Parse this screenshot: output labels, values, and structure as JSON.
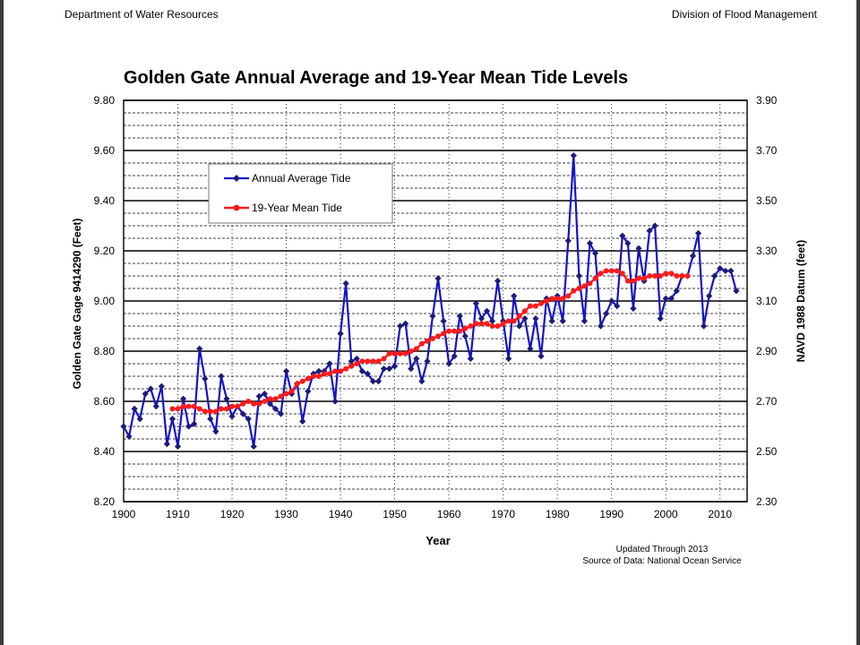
{
  "header": {
    "left": "Department of Water Resources",
    "right": "Division of Flood Management"
  },
  "footnotes": {
    "updated": "Updated Through 2013",
    "source": "Source of Data: National Ocean Service"
  },
  "chart_data": {
    "type": "line",
    "title": "Golden Gate Annual Average and 19-Year Mean Tide Levels",
    "xlabel": "Year",
    "ylabel": "Golden Gate Gage 9414290 (Feet)",
    "ylabel_right": "NAVD 1988 Datum (feet)",
    "xlim": [
      1900,
      2015
    ],
    "ylim": [
      8.2,
      9.8
    ],
    "ylim_right": [
      2.3,
      3.9
    ],
    "x_ticks": [
      1900,
      1910,
      1920,
      1930,
      1940,
      1950,
      1960,
      1970,
      1980,
      1990,
      2000,
      2010
    ],
    "y_ticks": [
      "8.20",
      "8.40",
      "8.60",
      "8.80",
      "9.00",
      "9.20",
      "9.40",
      "9.60",
      "9.80"
    ],
    "y_ticks_right": [
      "2.30",
      "2.50",
      "2.70",
      "2.90",
      "3.10",
      "3.30",
      "3.50",
      "3.70",
      "3.90"
    ],
    "grid": true,
    "legend_position": "upper-left",
    "series": [
      {
        "name": "Annual Average Tide",
        "color": "#1414c8",
        "marker_color": "#1c1c78",
        "marker": "diamond",
        "x": [
          1900,
          1901,
          1902,
          1903,
          1904,
          1905,
          1906,
          1907,
          1908,
          1909,
          1910,
          1911,
          1912,
          1913,
          1914,
          1915,
          1916,
          1917,
          1918,
          1919,
          1920,
          1921,
          1922,
          1923,
          1924,
          1925,
          1926,
          1927,
          1928,
          1929,
          1930,
          1931,
          1932,
          1933,
          1934,
          1935,
          1936,
          1937,
          1938,
          1939,
          1940,
          1941,
          1942,
          1943,
          1944,
          1945,
          1946,
          1947,
          1948,
          1949,
          1950,
          1951,
          1952,
          1953,
          1954,
          1955,
          1956,
          1957,
          1958,
          1959,
          1960,
          1961,
          1962,
          1963,
          1964,
          1965,
          1966,
          1967,
          1968,
          1969,
          1970,
          1971,
          1972,
          1973,
          1974,
          1975,
          1976,
          1977,
          1978,
          1979,
          1980,
          1981,
          1982,
          1983,
          1984,
          1985,
          1986,
          1987,
          1988,
          1989,
          1990,
          1991,
          1992,
          1993,
          1994,
          1995,
          1996,
          1997,
          1998,
          1999,
          2000,
          2001,
          2002,
          2003,
          2004,
          2005,
          2006,
          2007,
          2008,
          2009,
          2010,
          2011,
          2012,
          2013
        ],
        "values": [
          8.5,
          8.46,
          8.57,
          8.53,
          8.63,
          8.65,
          8.58,
          8.66,
          8.43,
          8.53,
          8.42,
          8.61,
          8.5,
          8.51,
          8.81,
          8.69,
          8.53,
          8.48,
          8.7,
          8.61,
          8.54,
          8.58,
          8.55,
          8.53,
          8.42,
          8.62,
          8.63,
          8.59,
          8.57,
          8.55,
          8.72,
          8.63,
          8.67,
          8.52,
          8.64,
          8.71,
          8.72,
          8.72,
          8.75,
          8.6,
          8.87,
          9.07,
          8.76,
          8.77,
          8.72,
          8.71,
          8.68,
          8.68,
          8.73,
          8.73,
          8.74,
          8.9,
          8.91,
          8.73,
          8.77,
          8.68,
          8.76,
          8.94,
          9.09,
          8.92,
          8.75,
          8.78,
          8.94,
          8.86,
          8.77,
          8.99,
          8.93,
          8.96,
          8.92,
          9.08,
          8.92,
          8.77,
          9.02,
          8.9,
          8.93,
          8.81,
          8.93,
          8.78,
          9.01,
          8.92,
          9.02,
          8.92,
          9.24,
          9.58,
          9.1,
          8.92,
          9.23,
          9.19,
          8.9,
          8.95,
          9.0,
          8.98,
          9.26,
          9.23,
          8.97,
          9.21,
          9.08,
          9.28,
          9.3,
          8.93,
          9.01,
          9.01,
          9.04,
          9.1,
          9.1,
          9.18,
          9.27,
          8.9,
          9.02,
          9.1,
          9.13,
          9.12,
          9.12,
          9.04
        ]
      },
      {
        "name": "19-Year Mean Tide",
        "color": "#ff1a1a",
        "marker": "circle",
        "x": [
          1909,
          1910,
          1911,
          1912,
          1913,
          1914,
          1915,
          1916,
          1917,
          1918,
          1919,
          1920,
          1921,
          1922,
          1923,
          1924,
          1925,
          1926,
          1927,
          1928,
          1929,
          1930,
          1931,
          1932,
          1933,
          1934,
          1935,
          1936,
          1937,
          1938,
          1939,
          1940,
          1941,
          1942,
          1943,
          1944,
          1945,
          1946,
          1947,
          1948,
          1949,
          1950,
          1951,
          1952,
          1953,
          1954,
          1955,
          1956,
          1957,
          1958,
          1959,
          1960,
          1961,
          1962,
          1963,
          1964,
          1965,
          1966,
          1967,
          1968,
          1969,
          1970,
          1971,
          1972,
          1973,
          1974,
          1975,
          1976,
          1977,
          1978,
          1979,
          1980,
          1981,
          1982,
          1983,
          1984,
          1985,
          1986,
          1987,
          1988,
          1989,
          1990,
          1991,
          1992,
          1993,
          1994,
          1995,
          1996,
          1997,
          1998,
          1999,
          2000,
          2001,
          2002,
          2003,
          2004
        ],
        "values": [
          8.57,
          8.57,
          8.58,
          8.58,
          8.58,
          8.57,
          8.56,
          8.56,
          8.56,
          8.57,
          8.57,
          8.58,
          8.58,
          8.59,
          8.6,
          8.59,
          8.59,
          8.6,
          8.61,
          8.61,
          8.62,
          8.63,
          8.64,
          8.67,
          8.68,
          8.69,
          8.7,
          8.7,
          8.71,
          8.71,
          8.72,
          8.72,
          8.73,
          8.74,
          8.75,
          8.76,
          8.76,
          8.76,
          8.76,
          8.77,
          8.79,
          8.79,
          8.79,
          8.79,
          8.8,
          8.81,
          8.83,
          8.84,
          8.85,
          8.86,
          8.87,
          8.88,
          8.88,
          8.88,
          8.89,
          8.9,
          8.91,
          8.91,
          8.91,
          8.9,
          8.9,
          8.91,
          8.92,
          8.92,
          8.94,
          8.96,
          8.98,
          8.98,
          8.99,
          9.0,
          9.01,
          9.01,
          9.01,
          9.02,
          9.04,
          9.05,
          9.06,
          9.07,
          9.09,
          9.11,
          9.12,
          9.12,
          9.12,
          9.11,
          9.08,
          9.08,
          9.09,
          9.09,
          9.1,
          9.1,
          9.1,
          9.11,
          9.11,
          9.1,
          9.1,
          9.1
        ]
      }
    ]
  }
}
